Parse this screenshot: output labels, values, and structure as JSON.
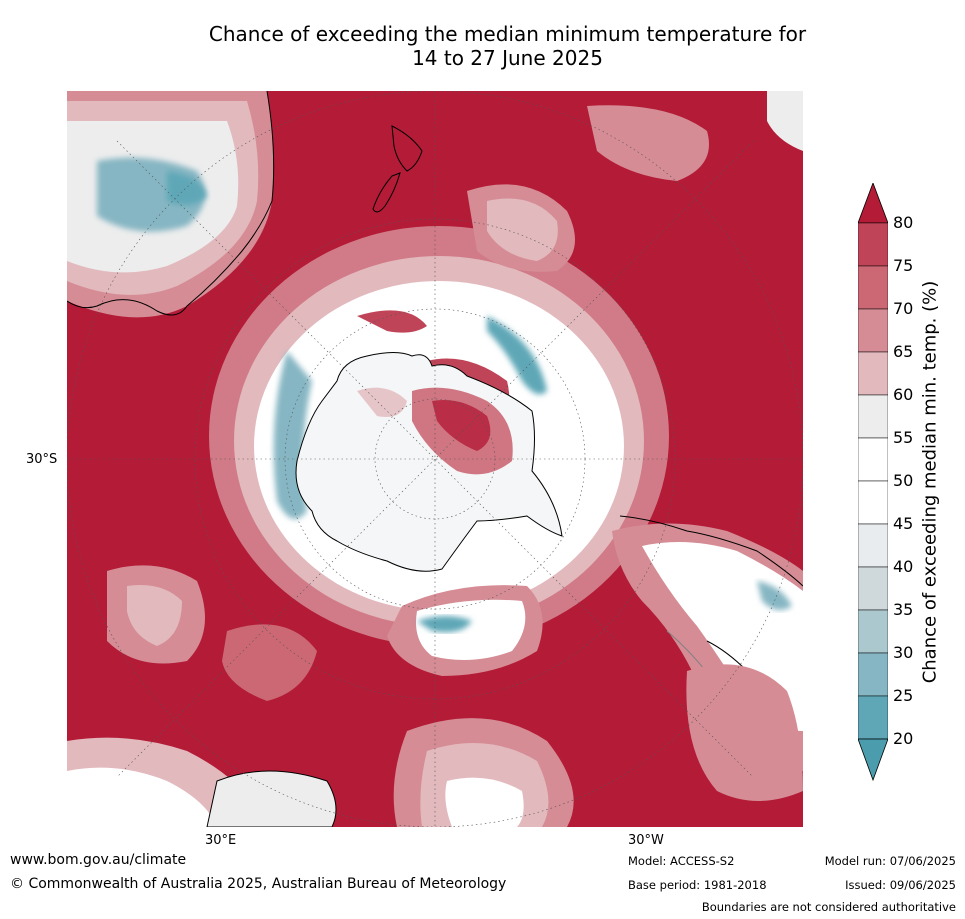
{
  "title": {
    "line1": "Chance of exceeding the median minimum temperature for",
    "line2": "14 to 27 June 2025"
  },
  "map": {
    "projection": "south-polar-stereographic",
    "lat_tick": "30°S",
    "lon_ticks": [
      "30°E",
      "30°W"
    ],
    "background_color": "#b31b37",
    "features": [
      "Antarctica",
      "Australia",
      "New Zealand",
      "South America",
      "Africa",
      "Indian Ocean",
      "Pacific Ocean",
      "Atlantic Ocean"
    ]
  },
  "colorbar": {
    "label": "Chance of exceeding median min. temp. (%)",
    "ticks": [
      "80",
      "75",
      "70",
      "65",
      "60",
      "55",
      "50",
      "45",
      "40",
      "35",
      "30",
      "25",
      "20"
    ],
    "colors": [
      "#b31b37",
      "#c04458",
      "#cb6874",
      "#d58c95",
      "#e2b9bd",
      "#ededed",
      "#ffffff",
      "#ffffff",
      "#e8ecee",
      "#cfd9dc",
      "#abc8cf",
      "#86b6c3",
      "#5fa7b7",
      "#4b9dae"
    ],
    "extend_min_color": "#4b9dae",
    "extend_max_color": "#b31b37"
  },
  "footer": {
    "website": "www.bom.gov.au/climate",
    "copyright": "© Commonwealth of Australia 2025, Australian Bureau of Meteorology",
    "model": "Model: ACCESS-S2",
    "base_period": "Base period: 1981-2018",
    "model_run": "Model run: 07/06/2025",
    "issued": "Issued: 09/06/2025",
    "disclaimer": "Boundaries are not considered authoritative"
  }
}
